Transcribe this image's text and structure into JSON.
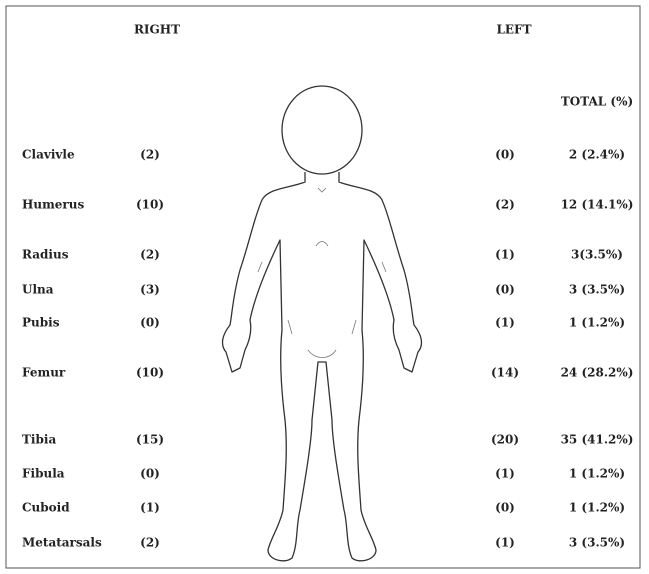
{
  "headers": {
    "right": "RIGHT",
    "left": "LEFT",
    "total": "TOTAL (%)"
  },
  "rows": [
    {
      "bone": "Clavivle",
      "right": "(2)",
      "left": "(0)",
      "total": "2 (2.4%)"
    },
    {
      "bone": "Humerus",
      "right": "(10)",
      "left": "(2)",
      "total": "12 (14.1%)"
    },
    {
      "bone": "Radius",
      "right": "(2)",
      "left": "(1)",
      "total": "3(3.5%)"
    },
    {
      "bone": "Ulna",
      "right": "(3)",
      "left": "(0)",
      "total": "3 (3.5%)"
    },
    {
      "bone": "Pubis",
      "right": "(0)",
      "left": "(1)",
      "total": "1 (1.2%)"
    },
    {
      "bone": "Femur",
      "right": "(10)",
      "left": "(14)",
      "total": "24 (28.2%)"
    },
    {
      "bone": "Tibia",
      "right": "(15)",
      "left": "(20)",
      "total": "35 (41.2%)"
    },
    {
      "bone": "Fibula",
      "right": "(0)",
      "left": "(1)",
      "total": "1 (1.2%)"
    },
    {
      "bone": "Cuboid",
      "right": "(1)",
      "left": "(0)",
      "total": "1 (1.2%)"
    },
    {
      "bone": "Metatarsals",
      "right": "(2)",
      "left": "(1)",
      "total": "3 (3.5%)"
    }
  ]
}
